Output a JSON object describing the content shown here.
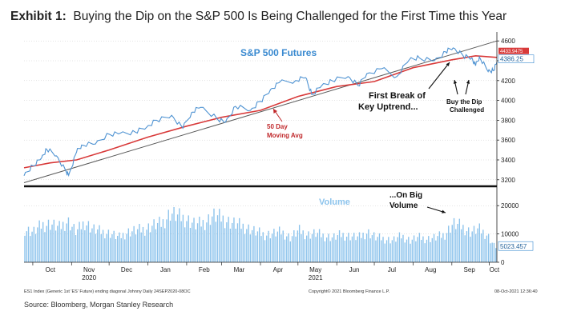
{
  "title": {
    "prefix": "Exhibit 1:",
    "text": "Buying the Dip on the S&P 500 Is Being Challenged for the First Time this Year"
  },
  "colors": {
    "price_line": "#4f93d2",
    "moving_avg": "#d83a3a",
    "trend_line": "#5a5a5a",
    "volume_bars": "#8cc3ec",
    "panel_title": "#3a8ad0",
    "annotation_red": "#c0282b"
  },
  "footer": {
    "index_text": "ES1 Index (Generic 1st 'ES' Future) ending diagonal Johnny Daily 24SEP2020-08OC",
    "copyright": "Copyright© 2021 Bloomberg Finance L.P.",
    "timestamp": "08-Oct-2021 12:36:40",
    "source": "Source: Bloomberg, Morgan Stanley Research"
  },
  "chart_data": [
    {
      "type": "line",
      "title": "S&P 500 Futures",
      "x_ticks": [
        "Oct",
        "Nov",
        "Dec",
        "Jan",
        "Feb",
        "Mar",
        "Apr",
        "May",
        "Jun",
        "Jul",
        "Aug",
        "Sep",
        "Oct"
      ],
      "x_year_labels": [
        "2020",
        "2021"
      ],
      "ylim": [
        3150,
        4650
      ],
      "y_ticks": [
        "4600",
        "4400",
        "4200",
        "4000",
        "3800",
        "3600",
        "3400",
        "3200"
      ],
      "last_price_label": "4386.25",
      "hidden_label": "4433.9475",
      "series": [
        {
          "name": "S&P 500 Futures",
          "x": [
            "2020-09-24",
            "2020-10-01",
            "2020-10-08",
            "2020-10-12",
            "2020-10-20",
            "2020-10-28",
            "2020-10-30",
            "2020-11-05",
            "2020-11-09",
            "2020-11-20",
            "2020-12-01",
            "2020-12-10",
            "2020-12-22",
            "2020-12-31",
            "2021-01-08",
            "2021-01-20",
            "2021-01-29",
            "2021-02-05",
            "2021-02-12",
            "2021-02-25",
            "2021-03-04",
            "2021-03-12",
            "2021-03-24",
            "2021-04-01",
            "2021-04-09",
            "2021-04-16",
            "2021-04-29",
            "2021-05-07",
            "2021-05-12",
            "2021-05-20",
            "2021-05-28",
            "2021-06-10",
            "2021-06-18",
            "2021-06-25",
            "2021-07-07",
            "2021-07-19",
            "2021-07-29",
            "2021-08-06",
            "2021-08-18",
            "2021-08-27",
            "2021-09-02",
            "2021-09-10",
            "2021-09-17",
            "2021-09-20",
            "2021-09-23",
            "2021-09-30",
            "2021-10-04",
            "2021-10-07"
          ],
          "values": [
            3240,
            3340,
            3420,
            3510,
            3440,
            3270,
            3260,
            3480,
            3550,
            3560,
            3660,
            3670,
            3680,
            3730,
            3800,
            3850,
            3720,
            3880,
            3930,
            3820,
            3780,
            3940,
            3900,
            3990,
            4110,
            4180,
            4200,
            4230,
            4060,
            4150,
            4200,
            4240,
            4150,
            4270,
            4320,
            4240,
            4410,
            4430,
            4400,
            4490,
            4530,
            4450,
            4430,
            4350,
            4440,
            4290,
            4300,
            4386
          ]
        },
        {
          "name": "50 Day Moving Avg",
          "x": [
            "2020-09-24",
            "2020-10-15",
            "2020-11-05",
            "2020-12-01",
            "2021-01-01",
            "2021-02-01",
            "2021-03-01",
            "2021-04-01",
            "2021-05-01",
            "2021-06-01",
            "2021-07-01",
            "2021-08-01",
            "2021-09-01",
            "2021-09-20",
            "2021-10-07"
          ],
          "values": [
            3320,
            3370,
            3400,
            3500,
            3630,
            3740,
            3830,
            3900,
            4040,
            4140,
            4190,
            4330,
            4410,
            4450,
            4434
          ]
        },
        {
          "name": "Key Uptrend",
          "x": [
            "2020-09-24",
            "2021-10-07"
          ],
          "values": [
            3170,
            4600
          ]
        }
      ],
      "annotations": [
        "First Break of",
        "Key Uptrend...",
        "Buy the Dip",
        "Challenged",
        "50 Day",
        "Moving Avg"
      ]
    },
    {
      "type": "bar",
      "title": "Volume",
      "ylim": [
        0,
        26000
      ],
      "y_ticks": [
        "20000",
        "10000",
        "0"
      ],
      "last_value_label": "5023.457",
      "annotation": [
        "...On Big",
        "Volume"
      ],
      "weekly_values": [
        12000,
        11000,
        13500,
        14000,
        12500,
        15000,
        11000,
        14500,
        12000,
        11000,
        10500,
        9000,
        11000,
        11500,
        12000,
        13500,
        14000,
        18000,
        16500,
        15500,
        13500,
        14500,
        17000,
        16000,
        14500,
        13500,
        12500,
        11000,
        10000,
        10500,
        11000,
        9000,
        11500,
        10000,
        10500,
        9500,
        9000,
        10000,
        9500,
        9000,
        11000,
        9000,
        8500,
        8000,
        9500,
        8000,
        9000,
        8500,
        9000,
        10000,
        14000,
        13000,
        11000,
        12000,
        10000,
        5023
      ]
    }
  ]
}
